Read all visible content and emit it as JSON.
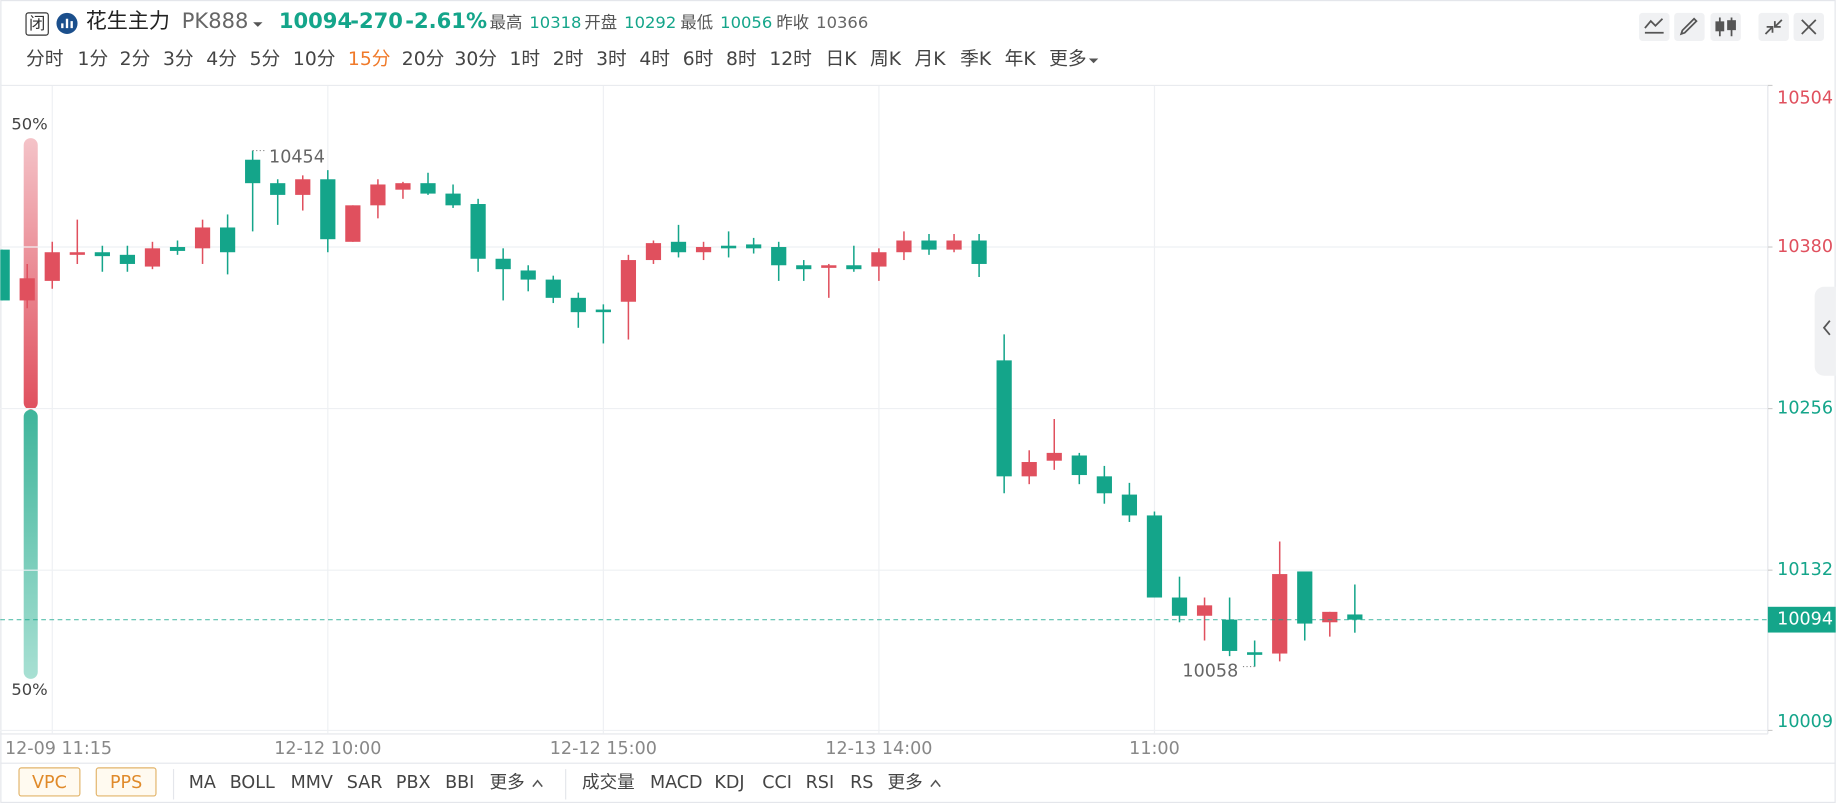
{
  "header": {
    "status": "闭",
    "name": "花生主力",
    "code": "PK888",
    "price": 10094,
    "change": -270,
    "change_pct": "-2.61%",
    "stats": [
      {
        "label": "最高",
        "value": 10318
      },
      {
        "label": "开盘",
        "value": 10292
      },
      {
        "label": "最低",
        "value": 10056
      },
      {
        "label": "昨收",
        "value": 10366
      }
    ]
  },
  "periods": [
    "分时",
    "1分",
    "2分",
    "3分",
    "4分",
    "5分",
    "10分",
    "15分",
    "20分",
    "30分",
    "1时",
    "2时",
    "3时",
    "4时",
    "6时",
    "8时",
    "12时",
    "日K",
    "周K",
    "月K",
    "季K",
    "年K",
    "更多"
  ],
  "indicators": {
    "overlay_boxes": [
      "VPC",
      "PPS"
    ],
    "main": [
      "MA",
      "BOLL",
      "MMV",
      "SAR",
      "PBX",
      "BBI",
      "更多"
    ],
    "sub": [
      "成交量",
      "MACD",
      "KDJ",
      "CCI",
      "RSI",
      "RS",
      "更多"
    ]
  },
  "side_bar": {
    "top": "50%",
    "bottom": "50%"
  },
  "chart_data": {
    "type": "candlestick",
    "up_color": "#e0505e",
    "down_color": "#14a58a",
    "prev_close": 10366,
    "last_price": 10094,
    "annotations": [
      10454,
      10058
    ],
    "categories": [
      null,
      null,
      "12-09 11:15",
      null,
      null,
      null,
      null,
      null,
      null,
      null,
      null,
      null,
      null,
      "12-12 10:00",
      null,
      null,
      null,
      null,
      null,
      null,
      null,
      null,
      null,
      null,
      "12-12 15:00",
      null,
      null,
      null,
      null,
      null,
      null,
      null,
      null,
      null,
      null,
      "12-13 14:00",
      null,
      null,
      null,
      null,
      null,
      null,
      null,
      null,
      null,
      null,
      "11:00",
      null,
      null,
      null,
      null,
      null,
      null,
      null,
      null
    ],
    "open": [
      10378,
      10339,
      10354,
      10374,
      10376,
      10374,
      10365,
      10380,
      10379,
      10395,
      10447,
      10429,
      10420,
      10432,
      10384,
      10412,
      10424,
      10429,
      10421,
      10413,
      10371,
      10362,
      10355,
      10341,
      10332,
      10338,
      10370,
      10384,
      10376,
      10381,
      10382,
      10380,
      10366,
      10364,
      10366,
      10365,
      10376,
      10385,
      10378,
      10385,
      10293,
      10204,
      10216,
      10220,
      10204,
      10190,
      10174,
      10111,
      10097,
      10094,
      10069,
      10068,
      10131,
      10092,
      10098
    ],
    "high": [
      10378,
      10367,
      10384,
      10401,
      10381,
      10381,
      10384,
      10385,
      10401,
      10405,
      10454,
      10432,
      10435,
      10439,
      10412,
      10432,
      10430,
      10437,
      10428,
      10417,
      10379,
      10366,
      10358,
      10345,
      10336,
      10374,
      10385,
      10397,
      10384,
      10392,
      10387,
      10384,
      10370,
      10367,
      10381,
      10379,
      10392,
      10390,
      10390,
      10390,
      10313,
      10224,
      10248,
      10222,
      10212,
      10199,
      10177,
      10127,
      10111,
      10111,
      10078,
      10154,
      10131,
      10100,
      10121
    ],
    "low": [
      10339,
      10333,
      10348,
      10367,
      10361,
      10361,
      10363,
      10374,
      10367,
      10359,
      10392,
      10397,
      10408,
      10376,
      10384,
      10402,
      10417,
      10420,
      10410,
      10361,
      10339,
      10346,
      10337,
      10318,
      10306,
      10309,
      10367,
      10372,
      10370,
      10372,
      10375,
      10354,
      10354,
      10341,
      10361,
      10354,
      10370,
      10374,
      10376,
      10357,
      10191,
      10198,
      10209,
      10198,
      10183,
      10169,
      10111,
      10092,
      10078,
      10066,
      10058,
      10062,
      10078,
      10081,
      10084
    ],
    "close": [
      10339,
      10356,
      10376,
      10376,
      10373,
      10367,
      10379,
      10377,
      10395,
      10376,
      10429,
      10420,
      10432,
      10386,
      10412,
      10428,
      10429,
      10421,
      10412,
      10371,
      10363,
      10355,
      10341,
      10330,
      10330,
      10370,
      10383,
      10376,
      10380,
      10379,
      10379,
      10366,
      10363,
      10366,
      10363,
      10376,
      10385,
      10378,
      10385,
      10367,
      10204,
      10215,
      10222,
      10205,
      10191,
      10174,
      10111,
      10097,
      10105,
      10070,
      10067,
      10129,
      10091,
      10100,
      10094
    ],
    "ylim": [
      10009,
      10504
    ],
    "yticks": [
      10009,
      10132,
      10256,
      10380,
      10504
    ],
    "grid": true
  }
}
